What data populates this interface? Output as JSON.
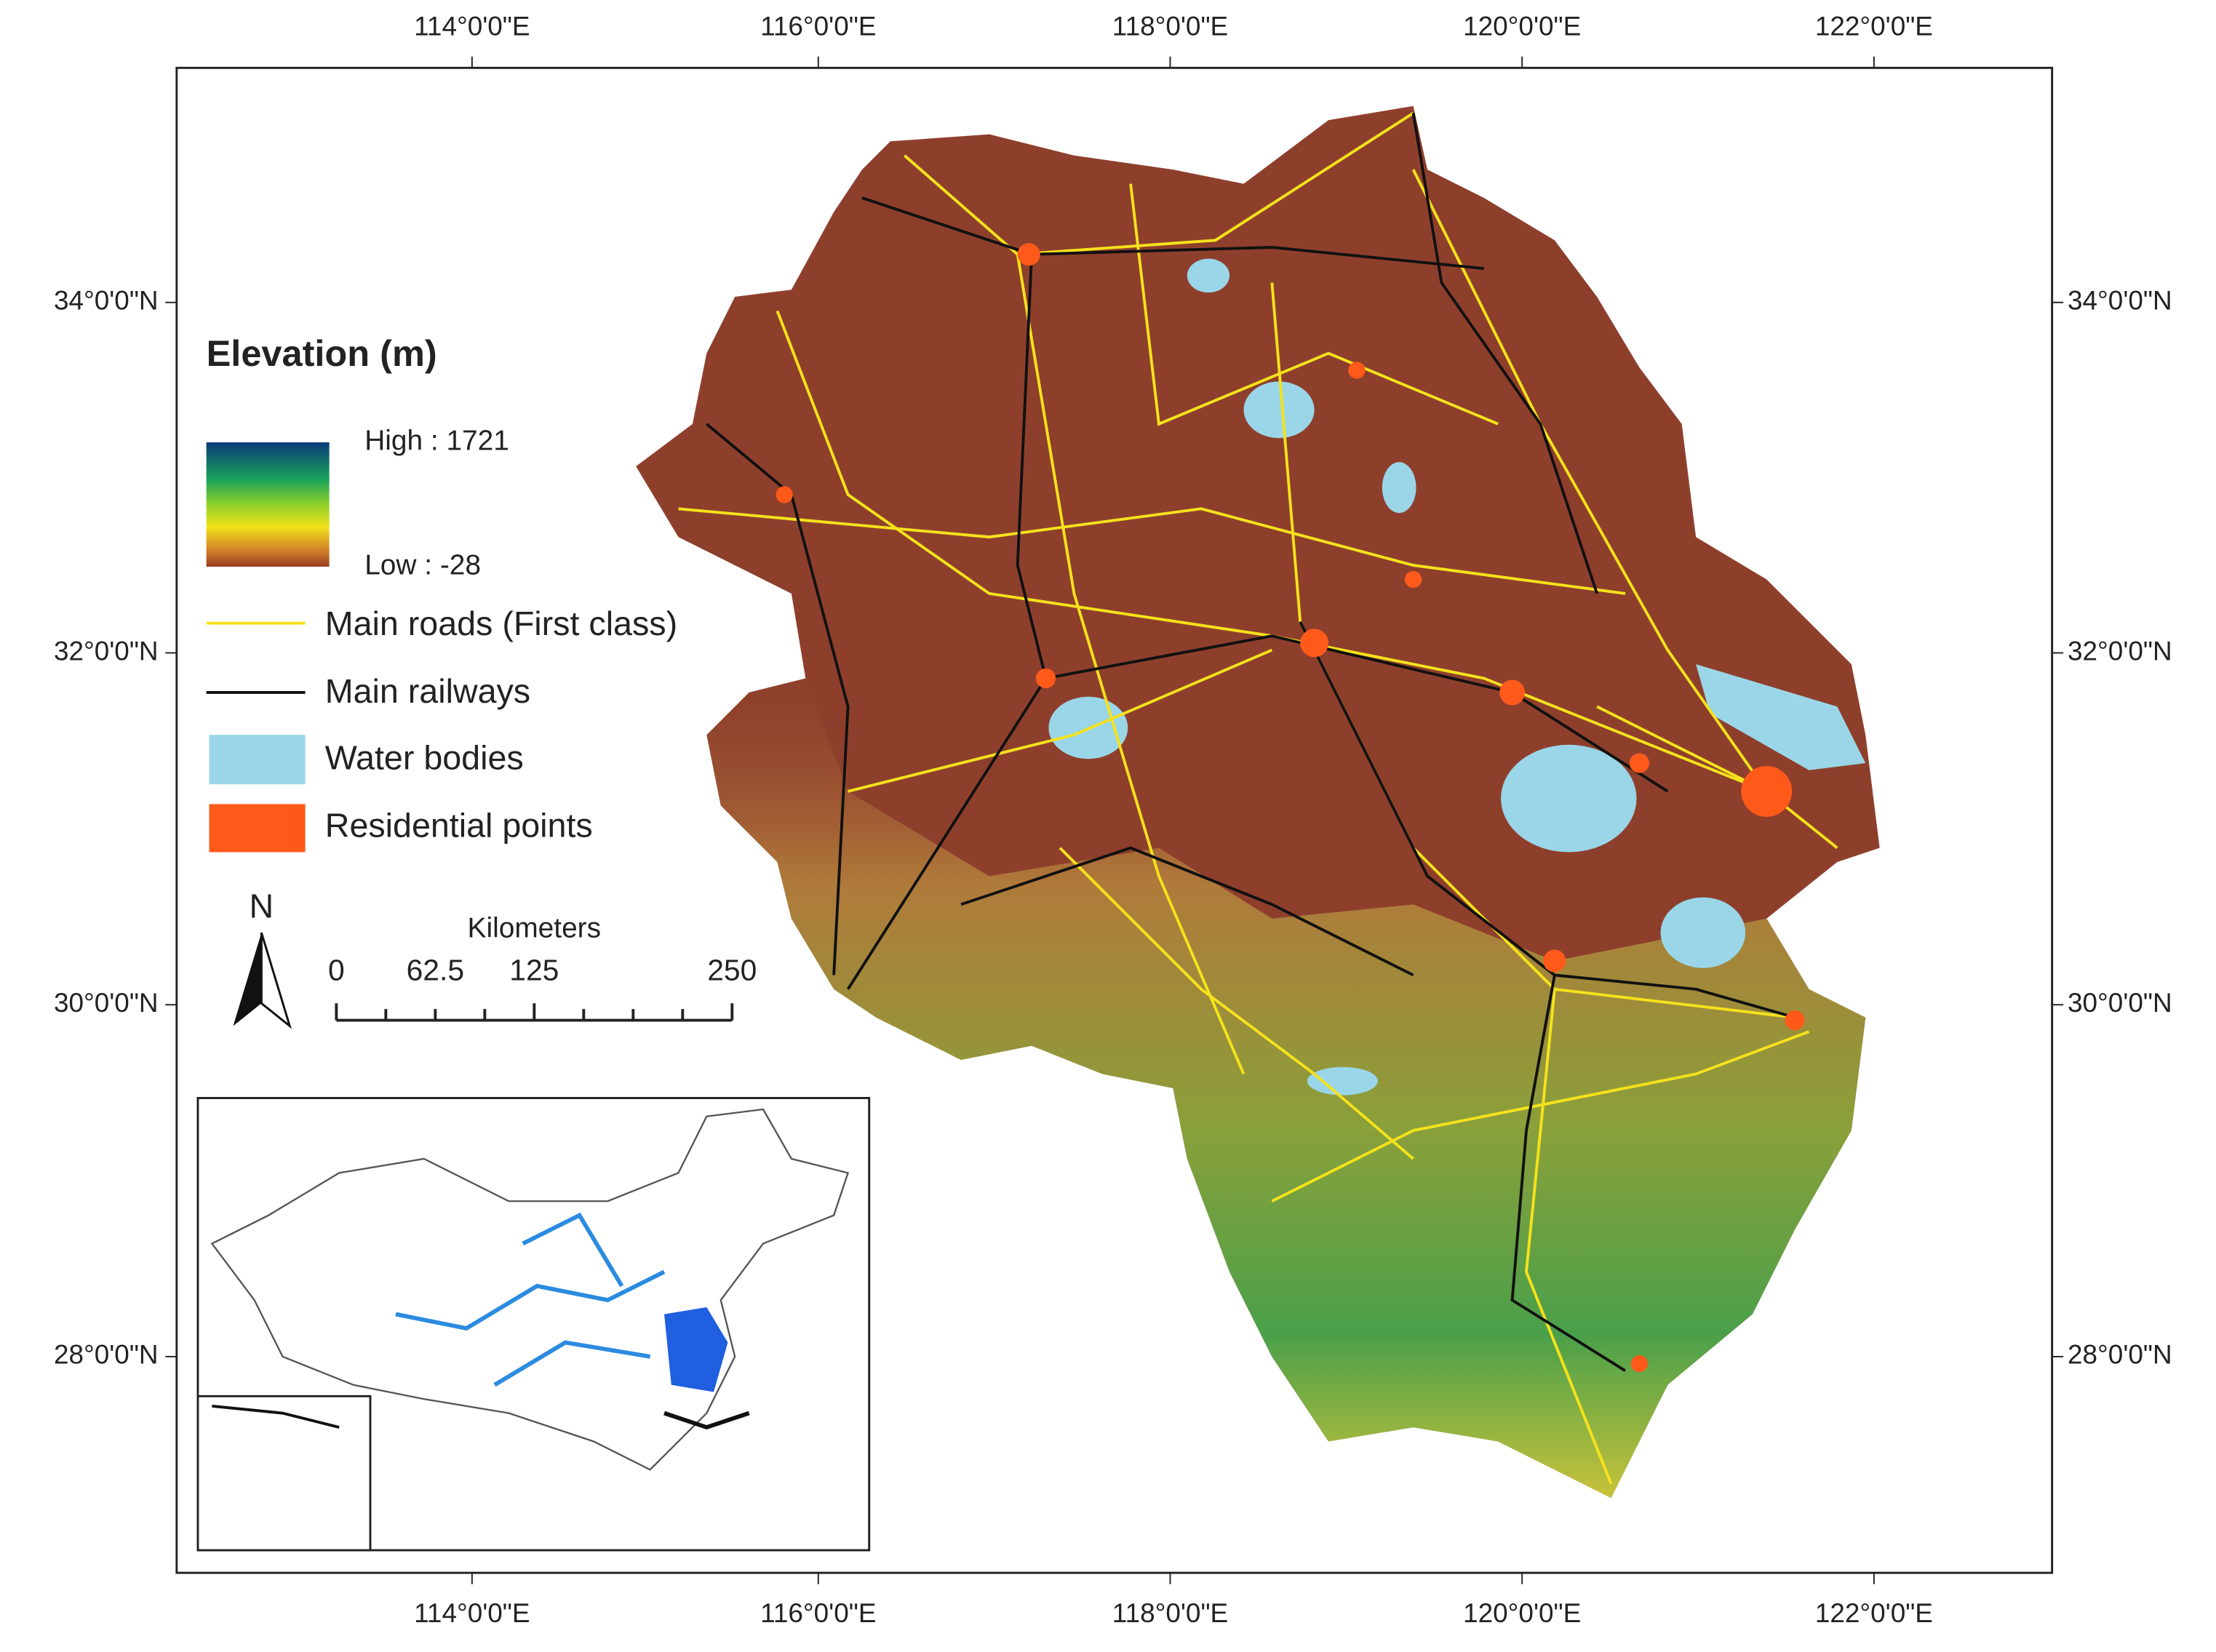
{
  "map": {
    "longitude_labels": [
      "114°0'0\"E",
      "116°0'0\"E",
      "118°0'0\"E",
      "120°0'0\"E",
      "122°0'0\"E"
    ],
    "latitude_labels": [
      "34°0'0\"N",
      "32°0'0\"N",
      "30°0'0\"N",
      "28°0'0\"N"
    ]
  },
  "legend": {
    "title": "Elevation (m)",
    "elevation_high": "High : 1721",
    "elevation_low": "Low : -28",
    "items": [
      "Main roads (First class)",
      "Main railways",
      "Water bodies",
      "Residential points"
    ]
  },
  "north_arrow": "N",
  "scale_bar": {
    "title": "Kilometers",
    "labels": [
      "0",
      "62.5",
      "125",
      "250"
    ]
  }
}
